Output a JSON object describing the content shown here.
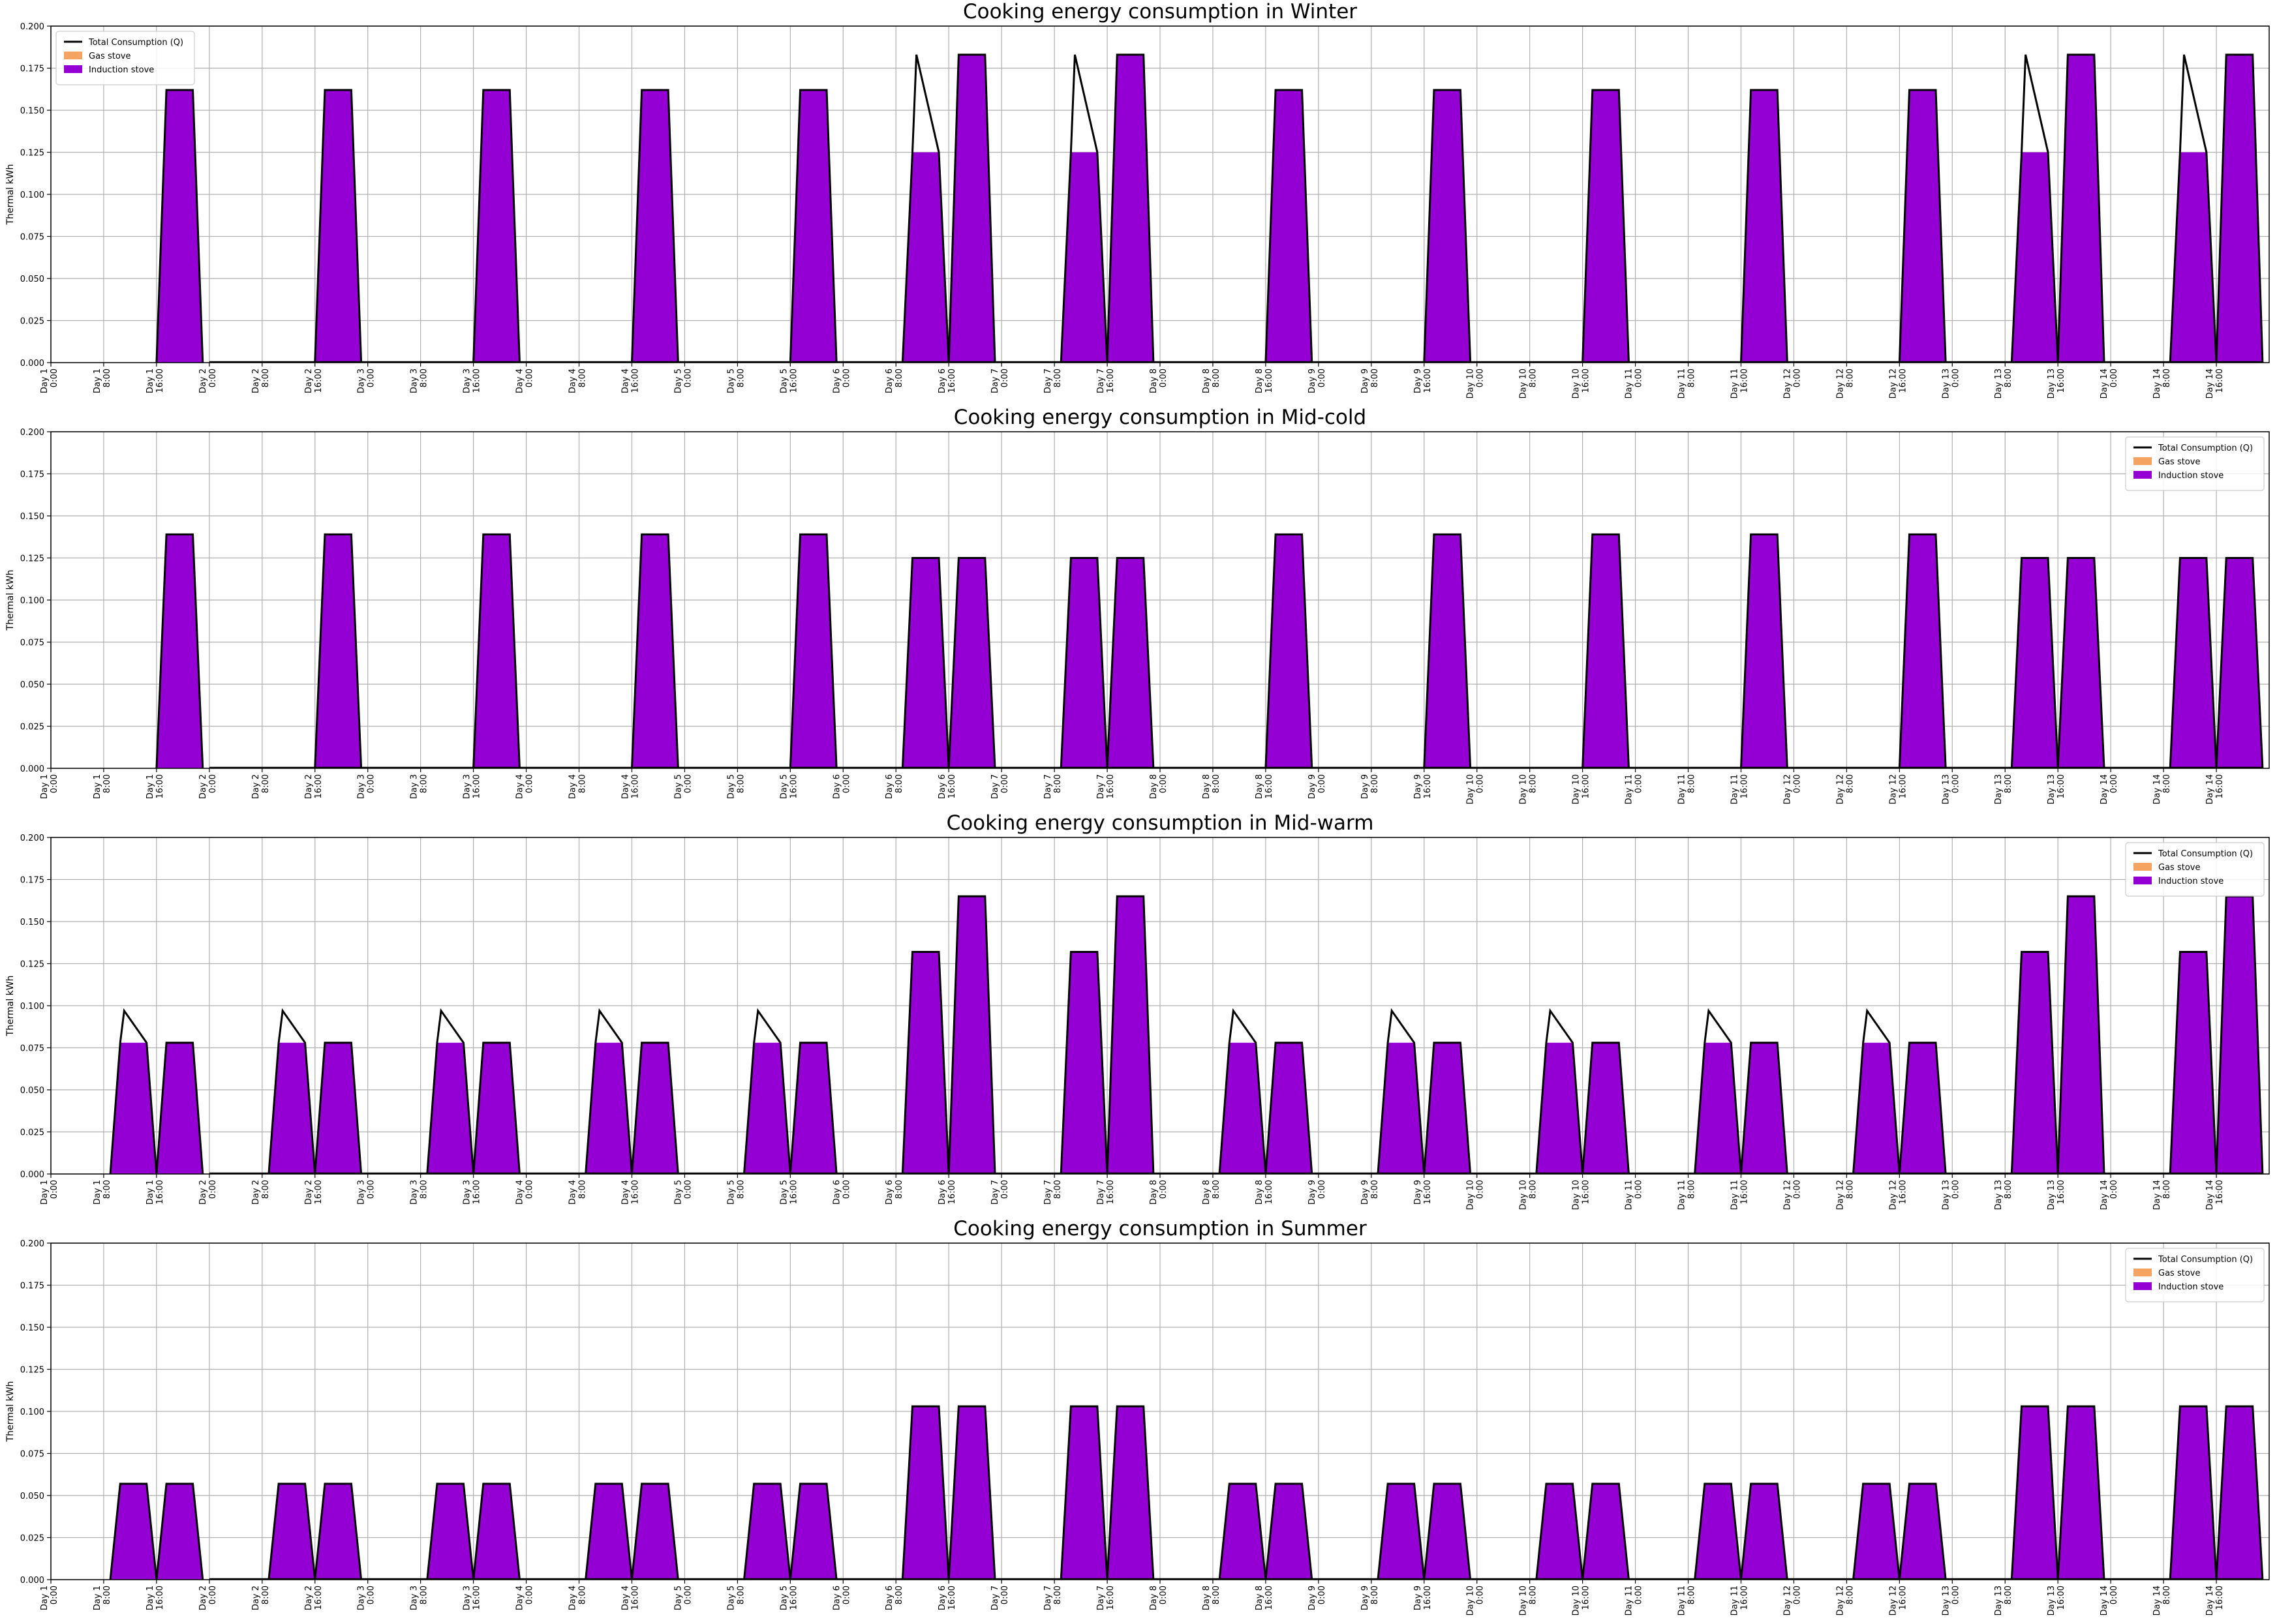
{
  "figure": {
    "legend_labels": [
      "Total Consumption (Q)",
      "Gas stove",
      "Induction stove"
    ],
    "colors": {
      "total": "#000000",
      "gas": "#f4a460",
      "induction": "#9400d3",
      "grid": "#b0b0b0"
    }
  },
  "chart_data": [
    {
      "type": "area",
      "title": "Cooking energy consumption in Winter",
      "ylabel": "Thermal kWh",
      "xlabel": "",
      "ylim": [
        0,
        0.2
      ],
      "yticks": [
        "0.000",
        "0.025",
        "0.050",
        "0.075",
        "0.100",
        "0.125",
        "0.150",
        "0.175",
        "0.200"
      ],
      "xtick_labels": [
        "Day 1\n0:00",
        "Day 1\n8:00",
        "Day 1\n16:00",
        "Day 2\n0:00",
        "Day 2\n8:00",
        "Day 2\n16:00",
        "Day 3\n0:00",
        "Day 3\n8:00",
        "Day 3\n16:00",
        "Day 4\n0:00",
        "Day 4\n8:00",
        "Day 4\n16:00",
        "Day 5\n0:00",
        "Day 5\n8:00",
        "Day 5\n16:00",
        "Day 6\n0:00",
        "Day 6\n8:00",
        "Day 6\n16:00",
        "Day 7\n0:00",
        "Day 7\n8:00",
        "Day 7\n16:00",
        "Day 8\n0:00",
        "Day 8\n8:00",
        "Day 8\n16:00",
        "Day 9\n0:00",
        "Day 9\n8:00",
        "Day 9\n16:00",
        "Day 10\n0:00",
        "Day 10\n8:00",
        "Day 10\n16:00",
        "Day 11\n0:00",
        "Day 11\n8:00",
        "Day 11\n16:00",
        "Day 12\n0:00",
        "Day 12\n8:00",
        "Day 12\n16:00",
        "Day 13\n0:00",
        "Day 13\n8:00",
        "Day 13\n16:00",
        "Day 14\n0:00",
        "Day 14\n8:00",
        "Day 14\n16:00"
      ],
      "legend": "upper left",
      "grid": true,
      "peaks": [
        {
          "day": 1,
          "hour": 19.5,
          "total": 0.162,
          "induction": 0.162
        },
        {
          "day": 2,
          "hour": 19.5,
          "total": 0.162,
          "induction": 0.162
        },
        {
          "day": 3,
          "hour": 19.5,
          "total": 0.162,
          "induction": 0.162
        },
        {
          "day": 4,
          "hour": 19.5,
          "total": 0.162,
          "induction": 0.162
        },
        {
          "day": 5,
          "hour": 19.5,
          "total": 0.162,
          "induction": 0.162
        },
        {
          "day": 6,
          "hour": 12.5,
          "total": 0.183,
          "induction": 0.125
        },
        {
          "day": 6,
          "hour": 19.5,
          "total": 0.183,
          "induction": 0.183
        },
        {
          "day": 7,
          "hour": 12.5,
          "total": 0.183,
          "induction": 0.125
        },
        {
          "day": 7,
          "hour": 19.5,
          "total": 0.183,
          "induction": 0.183
        },
        {
          "day": 8,
          "hour": 19.5,
          "total": 0.162,
          "induction": 0.162
        },
        {
          "day": 9,
          "hour": 19.5,
          "total": 0.162,
          "induction": 0.162
        },
        {
          "day": 10,
          "hour": 19.5,
          "total": 0.162,
          "induction": 0.162
        },
        {
          "day": 11,
          "hour": 19.5,
          "total": 0.162,
          "induction": 0.162
        },
        {
          "day": 12,
          "hour": 19.5,
          "total": 0.162,
          "induction": 0.162
        },
        {
          "day": 13,
          "hour": 12.5,
          "total": 0.183,
          "induction": 0.125
        },
        {
          "day": 13,
          "hour": 19.5,
          "total": 0.183,
          "induction": 0.183
        },
        {
          "day": 14,
          "hour": 12.5,
          "total": 0.183,
          "induction": 0.125
        },
        {
          "day": 14,
          "hour": 19.5,
          "total": 0.183,
          "induction": 0.183
        }
      ]
    },
    {
      "type": "area",
      "title": "Cooking energy consumption in Mid-cold",
      "ylabel": "Thermal kWh",
      "xlabel": "",
      "ylim": [
        0,
        0.2
      ],
      "yticks": [
        "0.000",
        "0.025",
        "0.050",
        "0.075",
        "0.100",
        "0.125",
        "0.150",
        "0.175",
        "0.200"
      ],
      "xtick_labels": [
        "Day 1\n0:00",
        "Day 1\n8:00",
        "Day 1\n16:00",
        "Day 2\n0:00",
        "Day 2\n8:00",
        "Day 2\n16:00",
        "Day 3\n0:00",
        "Day 3\n8:00",
        "Day 3\n16:00",
        "Day 4\n0:00",
        "Day 4\n8:00",
        "Day 4\n16:00",
        "Day 5\n0:00",
        "Day 5\n8:00",
        "Day 5\n16:00",
        "Day 6\n0:00",
        "Day 6\n8:00",
        "Day 6\n16:00",
        "Day 7\n0:00",
        "Day 7\n8:00",
        "Day 7\n16:00",
        "Day 8\n0:00",
        "Day 8\n8:00",
        "Day 8\n16:00",
        "Day 9\n0:00",
        "Day 9\n8:00",
        "Day 9\n16:00",
        "Day 10\n0:00",
        "Day 10\n8:00",
        "Day 10\n16:00",
        "Day 11\n0:00",
        "Day 11\n8:00",
        "Day 11\n16:00",
        "Day 12\n0:00",
        "Day 12\n8:00",
        "Day 12\n16:00",
        "Day 13\n0:00",
        "Day 13\n8:00",
        "Day 13\n16:00",
        "Day 14\n0:00",
        "Day 14\n8:00",
        "Day 14\n16:00"
      ],
      "legend": "upper right",
      "grid": true,
      "peaks": [
        {
          "day": 1,
          "hour": 19.5,
          "total": 0.139,
          "induction": 0.139
        },
        {
          "day": 2,
          "hour": 19.5,
          "total": 0.139,
          "induction": 0.139
        },
        {
          "day": 3,
          "hour": 19.5,
          "total": 0.139,
          "induction": 0.139
        },
        {
          "day": 4,
          "hour": 19.5,
          "total": 0.139,
          "induction": 0.139
        },
        {
          "day": 5,
          "hour": 19.5,
          "total": 0.139,
          "induction": 0.139
        },
        {
          "day": 6,
          "hour": 12.5,
          "total": 0.125,
          "induction": 0.125
        },
        {
          "day": 6,
          "hour": 19.5,
          "total": 0.125,
          "induction": 0.125
        },
        {
          "day": 7,
          "hour": 12.5,
          "total": 0.125,
          "induction": 0.125
        },
        {
          "day": 7,
          "hour": 19.5,
          "total": 0.125,
          "induction": 0.125
        },
        {
          "day": 8,
          "hour": 19.5,
          "total": 0.139,
          "induction": 0.139
        },
        {
          "day": 9,
          "hour": 19.5,
          "total": 0.139,
          "induction": 0.139
        },
        {
          "day": 10,
          "hour": 19.5,
          "total": 0.139,
          "induction": 0.139
        },
        {
          "day": 11,
          "hour": 19.5,
          "total": 0.139,
          "induction": 0.139
        },
        {
          "day": 12,
          "hour": 19.5,
          "total": 0.139,
          "induction": 0.139
        },
        {
          "day": 13,
          "hour": 12.5,
          "total": 0.125,
          "induction": 0.125
        },
        {
          "day": 13,
          "hour": 19.5,
          "total": 0.125,
          "induction": 0.125
        },
        {
          "day": 14,
          "hour": 12.5,
          "total": 0.125,
          "induction": 0.125
        },
        {
          "day": 14,
          "hour": 19.5,
          "total": 0.125,
          "induction": 0.125
        }
      ]
    },
    {
      "type": "area",
      "title": "Cooking energy consumption in Mid-warm",
      "ylabel": "Thermal kWh",
      "xlabel": "",
      "ylim": [
        0,
        0.2
      ],
      "yticks": [
        "0.000",
        "0.025",
        "0.050",
        "0.075",
        "0.100",
        "0.125",
        "0.150",
        "0.175",
        "0.200"
      ],
      "xtick_labels": [
        "Day 1\n0:00",
        "Day 1\n8:00",
        "Day 1\n16:00",
        "Day 2\n0:00",
        "Day 2\n8:00",
        "Day 2\n16:00",
        "Day 3\n0:00",
        "Day 3\n8:00",
        "Day 3\n16:00",
        "Day 4\n0:00",
        "Day 4\n8:00",
        "Day 4\n16:00",
        "Day 5\n0:00",
        "Day 5\n8:00",
        "Day 5\n16:00",
        "Day 6\n0:00",
        "Day 6\n8:00",
        "Day 6\n16:00",
        "Day 7\n0:00",
        "Day 7\n8:00",
        "Day 7\n16:00",
        "Day 8\n0:00",
        "Day 8\n8:00",
        "Day 8\n16:00",
        "Day 9\n0:00",
        "Day 9\n8:00",
        "Day 9\n16:00",
        "Day 10\n0:00",
        "Day 10\n8:00",
        "Day 10\n16:00",
        "Day 11\n0:00",
        "Day 11\n8:00",
        "Day 11\n16:00",
        "Day 12\n0:00",
        "Day 12\n8:00",
        "Day 12\n16:00",
        "Day 13\n0:00",
        "Day 13\n8:00",
        "Day 13\n16:00",
        "Day 14\n0:00",
        "Day 14\n8:00",
        "Day 14\n16:00"
      ],
      "legend": "upper right",
      "grid": true,
      "peaks": [
        {
          "day": 1,
          "hour": 12.5,
          "total": 0.097,
          "induction": 0.078
        },
        {
          "day": 1,
          "hour": 19.5,
          "total": 0.078,
          "induction": 0.078
        },
        {
          "day": 2,
          "hour": 12.5,
          "total": 0.097,
          "induction": 0.078
        },
        {
          "day": 2,
          "hour": 19.5,
          "total": 0.078,
          "induction": 0.078
        },
        {
          "day": 3,
          "hour": 12.5,
          "total": 0.097,
          "induction": 0.078
        },
        {
          "day": 3,
          "hour": 19.5,
          "total": 0.078,
          "induction": 0.078
        },
        {
          "day": 4,
          "hour": 12.5,
          "total": 0.097,
          "induction": 0.078
        },
        {
          "day": 4,
          "hour": 19.5,
          "total": 0.078,
          "induction": 0.078
        },
        {
          "day": 5,
          "hour": 12.5,
          "total": 0.097,
          "induction": 0.078
        },
        {
          "day": 5,
          "hour": 19.5,
          "total": 0.078,
          "induction": 0.078
        },
        {
          "day": 6,
          "hour": 12.5,
          "total": 0.132,
          "induction": 0.132
        },
        {
          "day": 6,
          "hour": 19.5,
          "total": 0.165,
          "induction": 0.165
        },
        {
          "day": 7,
          "hour": 12.5,
          "total": 0.132,
          "induction": 0.132
        },
        {
          "day": 7,
          "hour": 19.5,
          "total": 0.165,
          "induction": 0.165
        },
        {
          "day": 8,
          "hour": 12.5,
          "total": 0.097,
          "induction": 0.078
        },
        {
          "day": 8,
          "hour": 19.5,
          "total": 0.078,
          "induction": 0.078
        },
        {
          "day": 9,
          "hour": 12.5,
          "total": 0.097,
          "induction": 0.078
        },
        {
          "day": 9,
          "hour": 19.5,
          "total": 0.078,
          "induction": 0.078
        },
        {
          "day": 10,
          "hour": 12.5,
          "total": 0.097,
          "induction": 0.078
        },
        {
          "day": 10,
          "hour": 19.5,
          "total": 0.078,
          "induction": 0.078
        },
        {
          "day": 11,
          "hour": 12.5,
          "total": 0.097,
          "induction": 0.078
        },
        {
          "day": 11,
          "hour": 19.5,
          "total": 0.078,
          "induction": 0.078
        },
        {
          "day": 12,
          "hour": 12.5,
          "total": 0.097,
          "induction": 0.078
        },
        {
          "day": 12,
          "hour": 19.5,
          "total": 0.078,
          "induction": 0.078
        },
        {
          "day": 13,
          "hour": 12.5,
          "total": 0.132,
          "induction": 0.132
        },
        {
          "day": 13,
          "hour": 19.5,
          "total": 0.165,
          "induction": 0.165
        },
        {
          "day": 14,
          "hour": 12.5,
          "total": 0.132,
          "induction": 0.132
        },
        {
          "day": 14,
          "hour": 19.5,
          "total": 0.165,
          "induction": 0.165
        }
      ]
    },
    {
      "type": "area",
      "title": "Cooking energy consumption in Summer",
      "ylabel": "Thermal kWh",
      "xlabel": "",
      "ylim": [
        0,
        0.2
      ],
      "yticks": [
        "0.000",
        "0.025",
        "0.050",
        "0.075",
        "0.100",
        "0.125",
        "0.150",
        "0.175",
        "0.200"
      ],
      "xtick_labels": [
        "Day 1\n0:00",
        "Day 1\n8:00",
        "Day 1\n16:00",
        "Day 2\n0:00",
        "Day 2\n8:00",
        "Day 2\n16:00",
        "Day 3\n0:00",
        "Day 3\n8:00",
        "Day 3\n16:00",
        "Day 4\n0:00",
        "Day 4\n8:00",
        "Day 4\n16:00",
        "Day 5\n0:00",
        "Day 5\n8:00",
        "Day 5\n16:00",
        "Day 6\n0:00",
        "Day 6\n8:00",
        "Day 6\n16:00",
        "Day 7\n0:00",
        "Day 7\n8:00",
        "Day 7\n16:00",
        "Day 8\n0:00",
        "Day 8\n8:00",
        "Day 8\n16:00",
        "Day 9\n0:00",
        "Day 9\n8:00",
        "Day 9\n16:00",
        "Day 10\n0:00",
        "Day 10\n8:00",
        "Day 10\n16:00",
        "Day 11\n0:00",
        "Day 11\n8:00",
        "Day 11\n16:00",
        "Day 12\n0:00",
        "Day 12\n8:00",
        "Day 12\n16:00",
        "Day 13\n0:00",
        "Day 13\n8:00",
        "Day 13\n16:00",
        "Day 14\n0:00",
        "Day 14\n8:00",
        "Day 14\n16:00"
      ],
      "legend": "upper right",
      "grid": true,
      "peaks": [
        {
          "day": 1,
          "hour": 12.5,
          "total": 0.057,
          "induction": 0.057
        },
        {
          "day": 1,
          "hour": 19.5,
          "total": 0.057,
          "induction": 0.057
        },
        {
          "day": 2,
          "hour": 12.5,
          "total": 0.057,
          "induction": 0.057
        },
        {
          "day": 2,
          "hour": 19.5,
          "total": 0.057,
          "induction": 0.057
        },
        {
          "day": 3,
          "hour": 12.5,
          "total": 0.057,
          "induction": 0.057
        },
        {
          "day": 3,
          "hour": 19.5,
          "total": 0.057,
          "induction": 0.057
        },
        {
          "day": 4,
          "hour": 12.5,
          "total": 0.057,
          "induction": 0.057
        },
        {
          "day": 4,
          "hour": 19.5,
          "total": 0.057,
          "induction": 0.057
        },
        {
          "day": 5,
          "hour": 12.5,
          "total": 0.057,
          "induction": 0.057
        },
        {
          "day": 5,
          "hour": 19.5,
          "total": 0.057,
          "induction": 0.057
        },
        {
          "day": 6,
          "hour": 12.5,
          "total": 0.103,
          "induction": 0.103
        },
        {
          "day": 6,
          "hour": 19.5,
          "total": 0.103,
          "induction": 0.103
        },
        {
          "day": 7,
          "hour": 12.5,
          "total": 0.103,
          "induction": 0.103
        },
        {
          "day": 7,
          "hour": 19.5,
          "total": 0.103,
          "induction": 0.103
        },
        {
          "day": 8,
          "hour": 12.5,
          "total": 0.057,
          "induction": 0.057
        },
        {
          "day": 8,
          "hour": 19.5,
          "total": 0.057,
          "induction": 0.057
        },
        {
          "day": 9,
          "hour": 12.5,
          "total": 0.057,
          "induction": 0.057
        },
        {
          "day": 9,
          "hour": 19.5,
          "total": 0.057,
          "induction": 0.057
        },
        {
          "day": 10,
          "hour": 12.5,
          "total": 0.057,
          "induction": 0.057
        },
        {
          "day": 10,
          "hour": 19.5,
          "total": 0.057,
          "induction": 0.057
        },
        {
          "day": 11,
          "hour": 12.5,
          "total": 0.057,
          "induction": 0.057
        },
        {
          "day": 11,
          "hour": 19.5,
          "total": 0.057,
          "induction": 0.057
        },
        {
          "day": 12,
          "hour": 12.5,
          "total": 0.057,
          "induction": 0.057
        },
        {
          "day": 12,
          "hour": 19.5,
          "total": 0.057,
          "induction": 0.057
        },
        {
          "day": 13,
          "hour": 12.5,
          "total": 0.103,
          "induction": 0.103
        },
        {
          "day": 13,
          "hour": 19.5,
          "total": 0.103,
          "induction": 0.103
        },
        {
          "day": 14,
          "hour": 12.5,
          "total": 0.103,
          "induction": 0.103
        },
        {
          "day": 14,
          "hour": 19.5,
          "total": 0.103,
          "induction": 0.103
        }
      ]
    }
  ]
}
